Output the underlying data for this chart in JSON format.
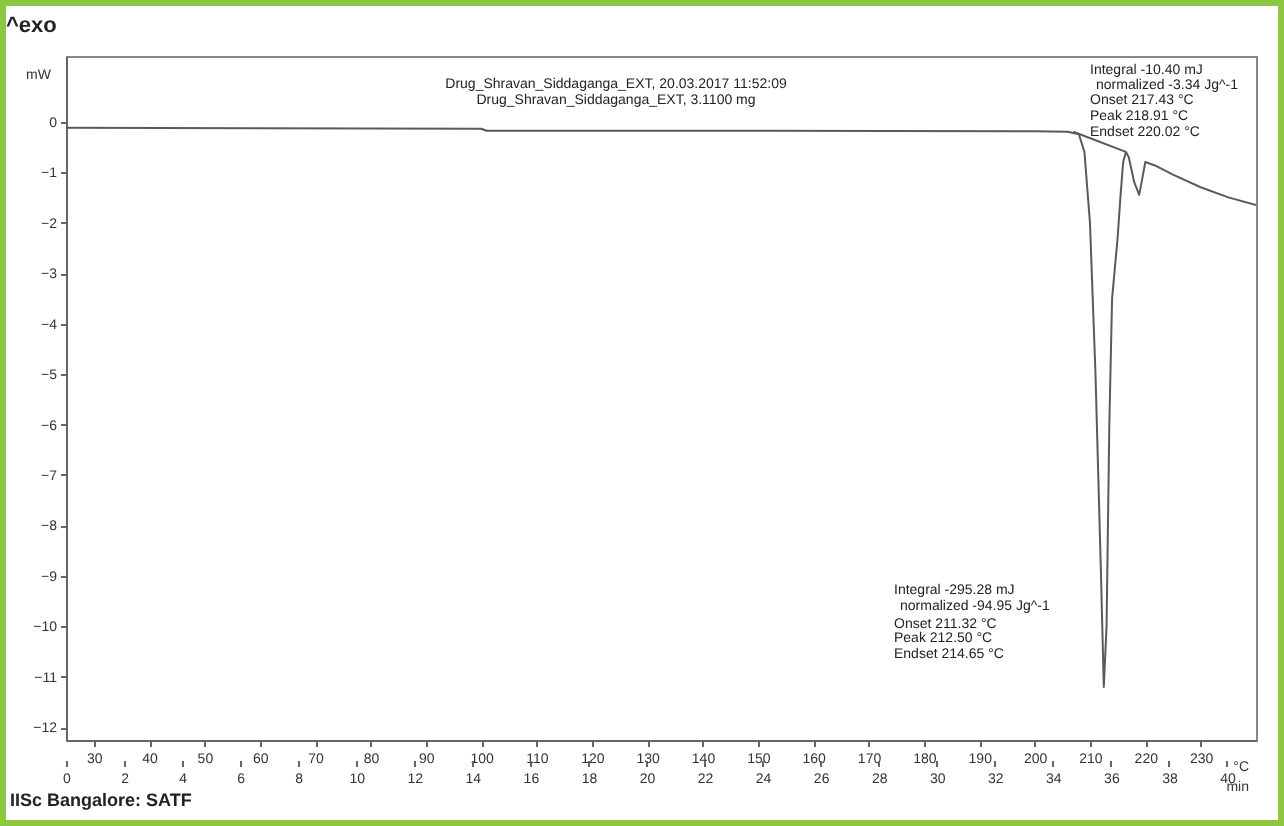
{
  "chart_data": {
    "type": "line",
    "title": "Drug_Shravan_Siddaganga_EXT, 20.03.2017 11:52:09",
    "subtitle": "Drug_Shravan_Siddaganga_EXT, 3.1100 mg",
    "xlabel": "°C",
    "ylabel": "mW",
    "x2label": "min",
    "series": [
      {
        "color": "#5a5a5a",
        "x": [
          25,
          60,
          100,
          101,
          150,
          200,
          206,
          208,
          209,
          210,
          211,
          212,
          212.5,
          213,
          213.5,
          214,
          215,
          215.5,
          216,
          216.5,
          217,
          218,
          218.9,
          219.5,
          220,
          222,
          225,
          230,
          235,
          240
        ],
        "values": [
          -0.12,
          -0.13,
          -0.14,
          -0.18,
          -0.18,
          -0.19,
          -0.2,
          -0.25,
          -0.6,
          -2,
          -5,
          -9,
          -11.2,
          -10,
          -6,
          -3.5,
          -2.3,
          -1.5,
          -0.8,
          -0.6,
          -0.7,
          -1.2,
          -1.45,
          -1.1,
          -0.8,
          -0.88,
          -1.05,
          -1.3,
          -1.5,
          -1.65
        ]
      },
      {
        "color": "#5a5a5a",
        "x": [
          207,
          216.5
        ],
        "values": [
          -0.2,
          -0.6
        ]
      }
    ],
    "xlim": [
      25,
      240
    ],
    "xticks": [
      30,
      40,
      50,
      60,
      70,
      80,
      90,
      100,
      110,
      120,
      130,
      140,
      150,
      160,
      170,
      180,
      190,
      200,
      210,
      220,
      230
    ],
    "x2lim": [
      0,
      41
    ],
    "x2ticks": [
      0,
      2,
      4,
      6,
      8,
      10,
      12,
      14,
      16,
      18,
      20,
      22,
      24,
      26,
      28,
      30,
      32,
      34,
      36,
      38,
      40
    ],
    "ylim": [
      -12.25,
      1.3
    ],
    "yticks": [
      -12,
      -11,
      -10,
      -9,
      -8,
      -7,
      -6,
      -5,
      -4,
      -3,
      -2,
      -1,
      0
    ],
    "annotations": [
      "^exo",
      "Integral -10.40 mJ",
      "normalized -3.34 Jg^-1",
      "Onset 217.43 °C",
      "Peak 218.91 °C",
      "Endset 220.02 °C",
      "Integral -295.28 mJ",
      "normalized -94.95 Jg^-1",
      "Onset 211.32 °C",
      "Peak 212.50 °C",
      "Endset 214.65 °C",
      "IISc Bangalore: SATF"
    ]
  }
}
